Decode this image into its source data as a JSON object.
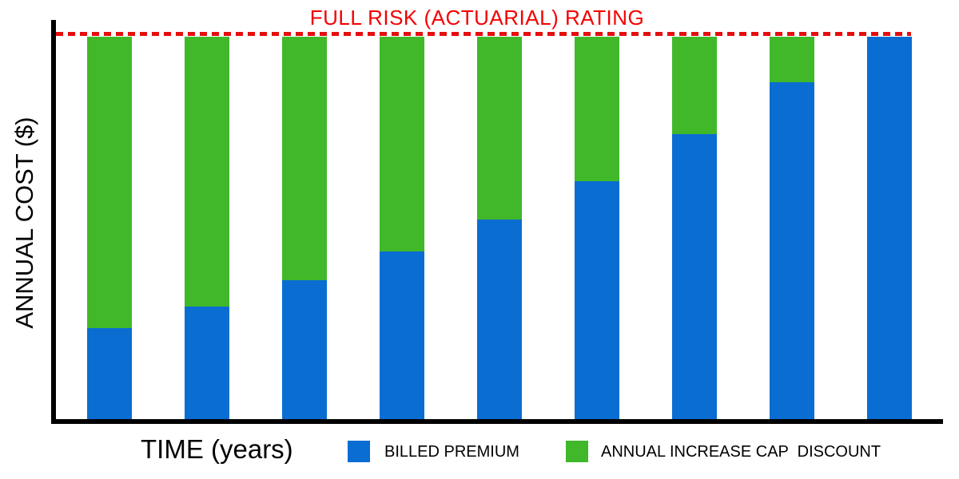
{
  "title": "FULL RISK (ACTUARIAL) RATING",
  "axes": {
    "y_label": "ANNUAL COST ($)",
    "x_label": "TIME (years)"
  },
  "legend": [
    {
      "label": "BILLED PREMIUM",
      "color": "#0a6dd2"
    },
    {
      "label": "ANNUAL INCREASE CAP  DISCOUNT",
      "color": "#41b82a"
    }
  ],
  "colors": {
    "billed_premium_blue": "#0a6dd2",
    "cap_discount_green": "#41b82a",
    "reference_line_red": "#e60d0d",
    "title_red": "#f40000",
    "axis_black": "#000000",
    "background": "#ffffff"
  },
  "chart_data": {
    "type": "bar",
    "stacked": true,
    "orientation": "vertical",
    "title": "FULL RISK (ACTUARIAL) RATING",
    "xlabel": "TIME (years)",
    "ylabel": "ANNUAL COST ($)",
    "x": [
      1,
      2,
      3,
      4,
      5,
      6,
      7,
      8,
      9
    ],
    "x_tick_labels_visible": false,
    "y_tick_labels_visible": false,
    "ylim_pct_of_full_rating": [
      0,
      100
    ],
    "series": [
      {
        "name": "BILLED PREMIUM",
        "color": "#0a6dd2",
        "values_pct_of_full_rating": [
          23.8,
          29.4,
          36.3,
          43.8,
          52.2,
          62.2,
          74.5,
          88.1,
          100
        ]
      },
      {
        "name": "ANNUAL INCREASE CAP  DISCOUNT",
        "color": "#41b82a",
        "values_pct_of_full_rating": [
          76.2,
          70.6,
          63.7,
          56.2,
          47.8,
          37.8,
          25.5,
          11.9,
          0
        ]
      }
    ],
    "reference_line": {
      "label": "FULL RISK (ACTUARIAL) RATING",
      "value_pct_of_full_rating": 100,
      "style": "dashed",
      "color": "#e60d0d",
      "position": "top"
    },
    "legend_position": "bottom",
    "grid": false
  }
}
